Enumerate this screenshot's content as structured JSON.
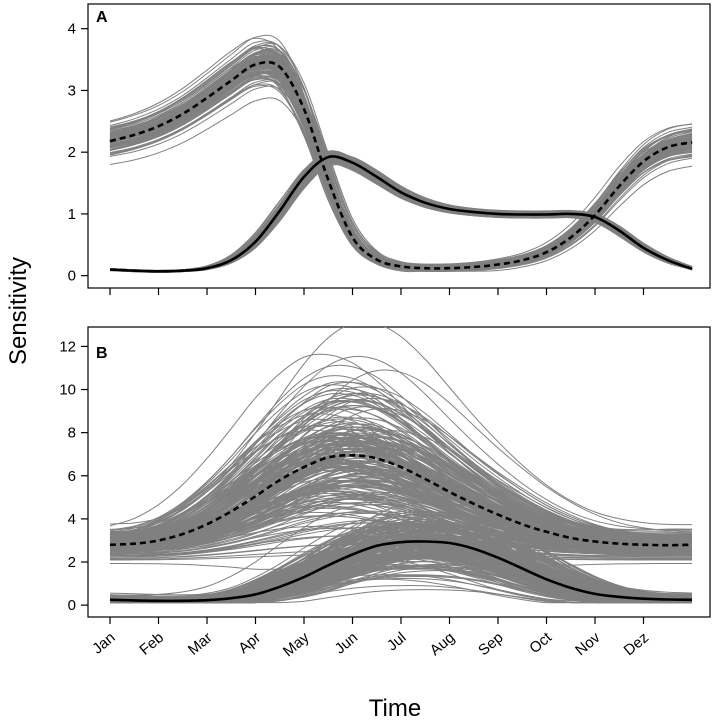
{
  "chart_data": [
    {
      "type": "line",
      "panel": "A",
      "xlabel": "Time",
      "ylabel": "Sensitivity",
      "categories": [
        "Jan",
        "Feb",
        "Mar",
        "Apr",
        "May",
        "Jun",
        "Jul",
        "Aug",
        "Sep",
        "Oct",
        "Nov",
        "Dez"
      ],
      "ylim": [
        0,
        4.4
      ],
      "yticks": [
        0,
        1,
        2,
        3,
        4
      ],
      "ensemble_color": "#808080",
      "series": [
        {
          "name": "solid",
          "style": "solid",
          "color": "#000000",
          "x": [
            0,
            0.5,
            1,
            1.5,
            2,
            2.5,
            3,
            3.5,
            4,
            4.5,
            5,
            5.5,
            6,
            6.5,
            7,
            7.5,
            8,
            8.5,
            9,
            9.5,
            10,
            10.5,
            11,
            11.5,
            12
          ],
          "values": [
            0.1,
            0.08,
            0.07,
            0.08,
            0.12,
            0.25,
            0.55,
            1.05,
            1.6,
            1.92,
            1.83,
            1.6,
            1.35,
            1.18,
            1.08,
            1.03,
            1.0,
            0.99,
            0.99,
            1.0,
            0.95,
            0.73,
            0.45,
            0.25,
            0.11
          ],
          "spread": 0.06
        },
        {
          "name": "dashed",
          "style": "dashed",
          "color": "#000000",
          "x": [
            0,
            0.5,
            1,
            1.5,
            2,
            2.5,
            3,
            3.5,
            4,
            4.5,
            5,
            5.5,
            6,
            6.5,
            7,
            7.5,
            8,
            8.5,
            9,
            9.5,
            10,
            10.5,
            11,
            11.5,
            12
          ],
          "values": [
            2.18,
            2.28,
            2.42,
            2.62,
            2.88,
            3.16,
            3.42,
            3.38,
            2.7,
            1.55,
            0.62,
            0.26,
            0.15,
            0.12,
            0.12,
            0.14,
            0.18,
            0.25,
            0.38,
            0.62,
            0.98,
            1.45,
            1.85,
            2.08,
            2.16
          ],
          "spread": 0.2
        }
      ]
    },
    {
      "type": "line",
      "panel": "B",
      "xlabel": "Time",
      "ylabel": "Sensitivity",
      "categories": [
        "Jan",
        "Feb",
        "Mar",
        "Apr",
        "May",
        "Jun",
        "Jul",
        "Aug",
        "Sep",
        "Oct",
        "Nov",
        "Dez"
      ],
      "ylim": [
        0,
        13
      ],
      "yticks": [
        0,
        2,
        4,
        6,
        8,
        10,
        12
      ],
      "ensemble_color": "#808080",
      "series": [
        {
          "name": "solid",
          "style": "solid",
          "color": "#000000",
          "x": [
            0,
            0.5,
            1,
            1.5,
            2,
            2.5,
            3,
            3.5,
            4,
            4.5,
            5,
            5.5,
            6,
            6.5,
            7,
            7.5,
            8,
            8.5,
            9,
            9.5,
            10,
            10.5,
            11,
            11.5,
            12
          ],
          "values": [
            0.25,
            0.22,
            0.2,
            0.2,
            0.23,
            0.32,
            0.5,
            0.85,
            1.3,
            1.85,
            2.35,
            2.75,
            2.92,
            2.95,
            2.88,
            2.62,
            2.2,
            1.7,
            1.2,
            0.8,
            0.52,
            0.38,
            0.3,
            0.26,
            0.25
          ],
          "spread": 1.4
        },
        {
          "name": "dashed",
          "style": "dashed",
          "color": "#000000",
          "x": [
            0,
            0.5,
            1,
            1.5,
            2,
            2.5,
            3,
            3.5,
            4,
            4.5,
            5,
            5.5,
            6,
            6.5,
            7,
            7.5,
            8,
            8.5,
            9,
            9.5,
            10,
            10.5,
            11,
            11.5,
            12
          ],
          "values": [
            2.8,
            2.85,
            3.0,
            3.3,
            3.75,
            4.35,
            5.05,
            5.8,
            6.4,
            6.85,
            6.95,
            6.8,
            6.4,
            5.85,
            5.25,
            4.7,
            4.2,
            3.75,
            3.4,
            3.12,
            2.95,
            2.85,
            2.8,
            2.78,
            2.8
          ],
          "spread": 3.6
        }
      ]
    }
  ],
  "labels": {
    "panel_a": "A",
    "panel_b": "B",
    "y_axis": "Sensitivity",
    "x_axis": "Time"
  }
}
